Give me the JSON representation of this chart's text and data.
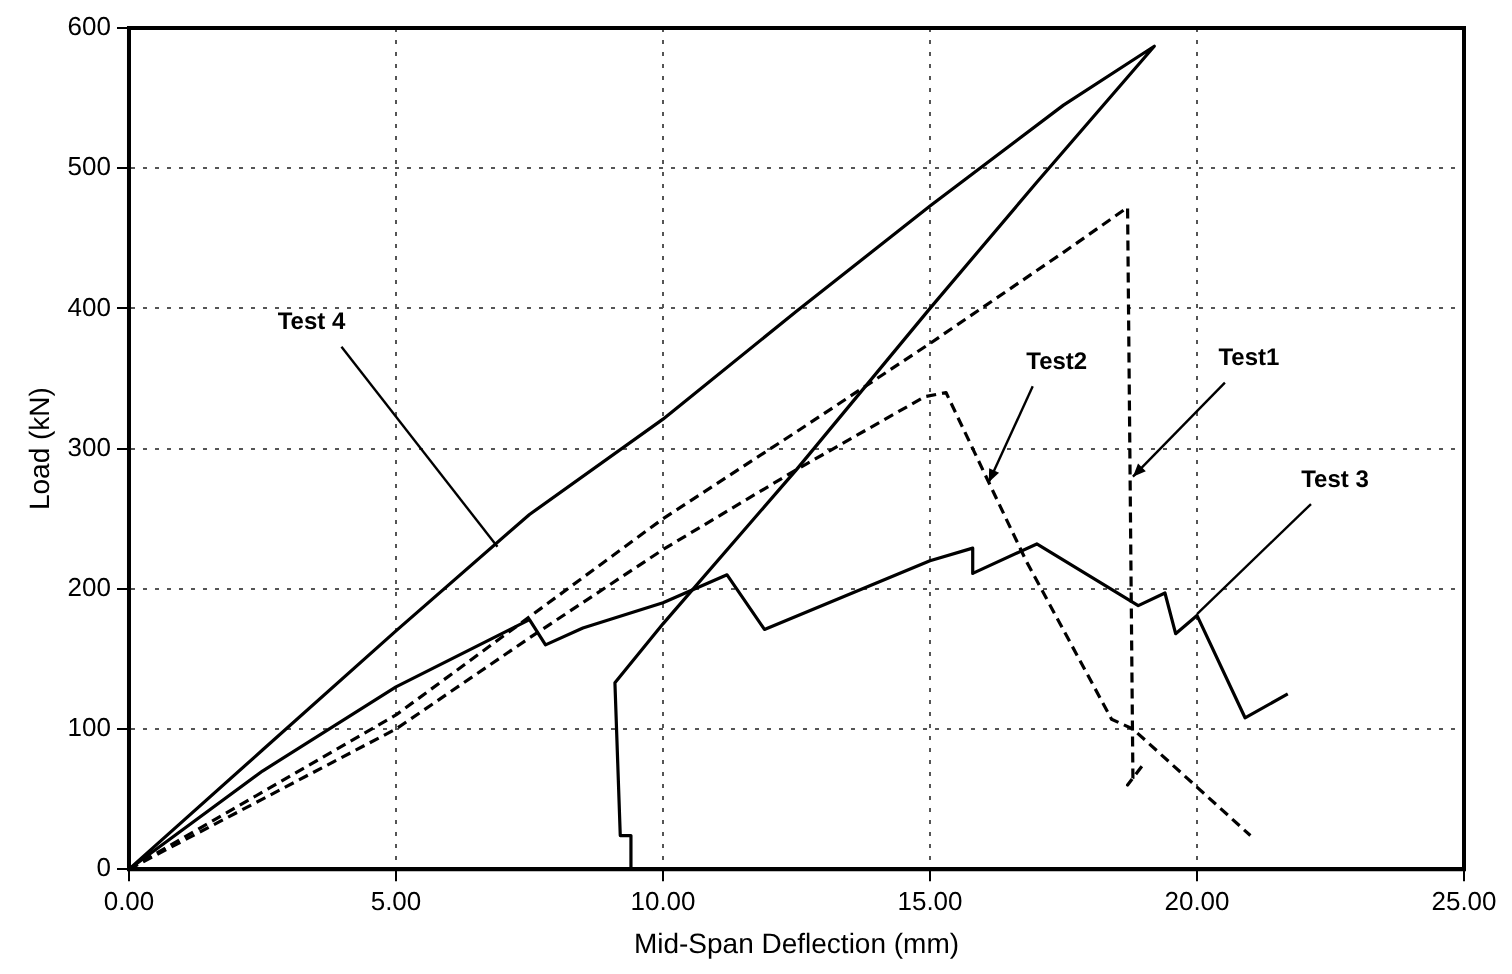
{
  "chart_data": {
    "type": "line",
    "xlabel": "Mid-Span Deflection (mm)",
    "ylabel": "Load (kN)",
    "xlim": [
      0,
      25
    ],
    "ylim": [
      0,
      600
    ],
    "xticks": [
      {
        "value": 0,
        "label": "0.00"
      },
      {
        "value": 5,
        "label": "5.00"
      },
      {
        "value": 10,
        "label": "10.00"
      },
      {
        "value": 15,
        "label": "15.00"
      },
      {
        "value": 20,
        "label": "20.00"
      },
      {
        "value": 25,
        "label": "25.00"
      }
    ],
    "yticks": [
      0,
      100,
      200,
      300,
      400,
      500,
      600
    ],
    "grid": true,
    "legend": false,
    "marker": "none",
    "series": [
      {
        "color": "#000000",
        "line_style": "solid",
        "x": [
          0,
          2.5,
          5,
          7.5,
          10,
          12.5,
          15,
          17.5,
          19.2,
          17,
          15,
          12.5,
          10,
          9.1,
          9.2,
          9.4,
          9.4
        ],
        "values": [
          0,
          85,
          170,
          253,
          321,
          398,
          473,
          545,
          587,
          490,
          400,
          285,
          175,
          133,
          24,
          24,
          0
        ]
      },
      {
        "color": "#000000",
        "line_style": "dashed",
        "x": [
          0,
          2.5,
          5,
          7.5,
          10,
          12.5,
          15,
          17.5,
          18.7,
          18.8,
          18.7,
          19.0
        ],
        "values": [
          0,
          55,
          110,
          180,
          250,
          312,
          375,
          440,
          472,
          65,
          60,
          75
        ]
      },
      {
        "color": "#000000",
        "line_style": "dashed",
        "x": [
          0,
          2.5,
          5,
          7.5,
          10,
          12.5,
          14.9,
          15.3,
          16.8,
          18.4,
          18.8,
          21.0
        ],
        "values": [
          0,
          50,
          100,
          165,
          228,
          285,
          337,
          340,
          220,
          107,
          100,
          24
        ]
      },
      {
        "color": "#000000",
        "line_style": "solid",
        "x": [
          0,
          2.5,
          5,
          7.5,
          7.8,
          8.5,
          10,
          11.2,
          11.9,
          15,
          15.8,
          15.8,
          17.0,
          18.9,
          19.4,
          19.6,
          20.0,
          20.9,
          21.7
        ],
        "values": [
          0,
          70,
          130,
          178,
          160,
          172,
          190,
          210,
          171,
          220,
          229,
          211,
          232,
          188,
          197,
          168,
          181,
          108,
          125
        ]
      }
    ],
    "annotations": [
      {
        "text": "Test 4",
        "x": 6.9,
        "y": 230
      },
      {
        "text": "Test1",
        "x": 18.8,
        "y": 280
      },
      {
        "text": "Test2",
        "x": 16.1,
        "y": 276
      },
      {
        "text": "Test 3",
        "x": 20.0,
        "y": 182
      }
    ]
  }
}
